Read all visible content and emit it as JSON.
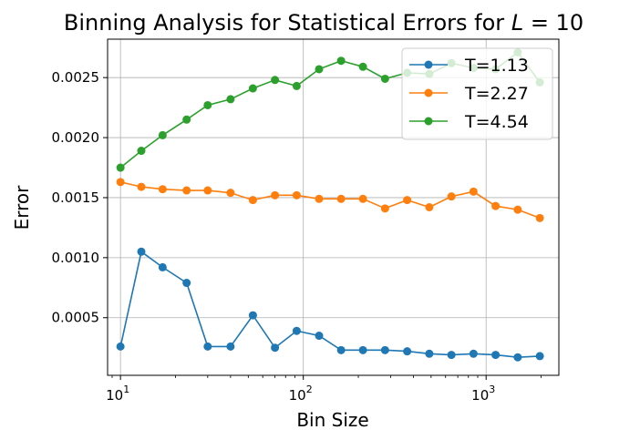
{
  "chart_data": {
    "type": "line",
    "title": "Binning Analysis for Statistical Errors for L = 10",
    "title_main": "Binning Analysis for Statistical Errors for ",
    "title_var": "L",
    "title_rest": " = 10",
    "xlabel": "Bin Size",
    "ylabel": "Error",
    "x_scale": "log",
    "xlim": [
      8.5,
      2500
    ],
    "ylim": [
      2e-05,
      0.00282
    ],
    "x_ticks": [
      {
        "value": 10,
        "base": "10",
        "exp": "1"
      },
      {
        "value": 100,
        "base": "10",
        "exp": "2"
      },
      {
        "value": 1000,
        "base": "10",
        "exp": "3"
      }
    ],
    "y_ticks": [
      {
        "value": 0.0005,
        "label": "0.0005"
      },
      {
        "value": 0.001,
        "label": "0.0010"
      },
      {
        "value": 0.0015,
        "label": "0.0015"
      },
      {
        "value": 0.002,
        "label": "0.0020"
      },
      {
        "value": 0.0025,
        "label": "0.0025"
      }
    ],
    "grid": true,
    "legend_position": "top-right",
    "x": [
      10,
      13,
      17,
      23,
      30,
      40,
      53,
      70,
      92,
      122,
      161,
      212,
      280,
      370,
      489,
      646,
      853,
      1127,
      1489,
      1967
    ],
    "series": [
      {
        "name": "T=1.13",
        "color": "#1f77b4",
        "values": [
          0.00026,
          0.00105,
          0.00092,
          0.00079,
          0.00026,
          0.00026,
          0.00052,
          0.00025,
          0.00039,
          0.00035,
          0.00023,
          0.00023,
          0.00023,
          0.00022,
          0.0002,
          0.00019,
          0.0002,
          0.00019,
          0.00017,
          0.00018
        ]
      },
      {
        "name": "T=2.27",
        "color": "#ff7f0e",
        "values": [
          0.00163,
          0.00159,
          0.00157,
          0.00156,
          0.00156,
          0.00154,
          0.00148,
          0.00152,
          0.00152,
          0.00149,
          0.00149,
          0.00149,
          0.00141,
          0.00148,
          0.00142,
          0.00151,
          0.00155,
          0.00143,
          0.0014,
          0.00133
        ]
      },
      {
        "name": "T=4.54",
        "color": "#2ca02c",
        "values": [
          0.00175,
          0.00189,
          0.00202,
          0.00215,
          0.00227,
          0.00232,
          0.00241,
          0.00248,
          0.00243,
          0.00257,
          0.00264,
          0.00259,
          0.00249,
          0.00254,
          0.00253,
          0.00262,
          0.00258,
          0.00257,
          0.00271,
          0.00246
        ]
      }
    ]
  }
}
